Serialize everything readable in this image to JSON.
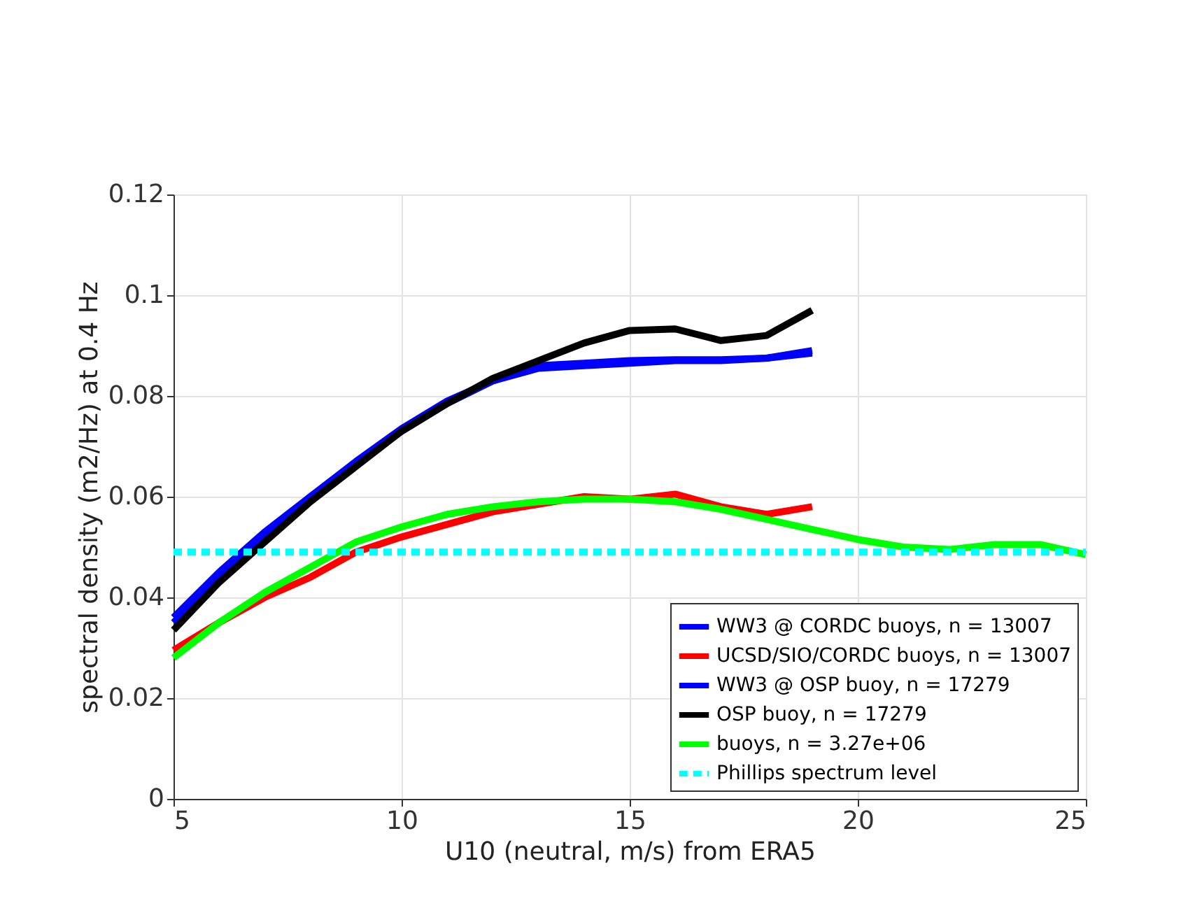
{
  "chart_data": {
    "type": "line",
    "xlabel": "U10 (neutral, m/s) from ERA5",
    "ylabel": "spectral density (m2/Hz) at 0.4 Hz",
    "xlim": [
      5,
      25
    ],
    "xticks": [
      5,
      10,
      15,
      20,
      25
    ],
    "ylim": [
      0,
      0.12
    ],
    "yticks": [
      0,
      0.02,
      0.04,
      0.06,
      0.08,
      0.1,
      0.12
    ],
    "grid": true,
    "legend": "bottom right",
    "marker": "none",
    "series": [
      {
        "name": "WW3 @ CORDC buoys, n = 13007",
        "color": "#0000ff",
        "line_style": "solid",
        "x": [
          5,
          6,
          7,
          8,
          9,
          10,
          11,
          12,
          13,
          14,
          15,
          16,
          17,
          18,
          19
        ],
        "values": [
          0.036,
          0.045,
          0.053,
          0.06,
          0.067,
          0.0735,
          0.079,
          0.083,
          0.0855,
          0.086,
          0.0865,
          0.087,
          0.087,
          0.0875,
          0.089
        ]
      },
      {
        "name": "UCSD/SIO/CORDC buoys, n = 13007",
        "color": "#ff0000",
        "line_style": "solid",
        "x": [
          5,
          6,
          7,
          8,
          9,
          10,
          11,
          12,
          13,
          14,
          15,
          16,
          17,
          18,
          19
        ],
        "values": [
          0.0295,
          0.035,
          0.04,
          0.044,
          0.049,
          0.052,
          0.0545,
          0.057,
          0.0585,
          0.06,
          0.0595,
          0.0605,
          0.058,
          0.0565,
          0.058
        ]
      },
      {
        "name": "WW3 @ OSP buoy, n = 17279",
        "color": "#0000ff",
        "line_style": "solid",
        "x": [
          5,
          6,
          7,
          8,
          9,
          10,
          11,
          12,
          13,
          14,
          15,
          16,
          17,
          18,
          19
        ],
        "values": [
          0.035,
          0.044,
          0.052,
          0.06,
          0.0665,
          0.073,
          0.0785,
          0.083,
          0.086,
          0.0865,
          0.087,
          0.0872,
          0.0872,
          0.0875,
          0.0885
        ]
      },
      {
        "name": "OSP buoy, n = 17279",
        "color": "#000000",
        "line_style": "solid",
        "x": [
          5,
          6,
          7,
          8,
          9,
          10,
          11,
          12,
          13,
          14,
          15,
          16,
          17,
          18,
          19
        ],
        "values": [
          0.0335,
          0.043,
          0.051,
          0.059,
          0.066,
          0.073,
          0.0785,
          0.0835,
          0.087,
          0.0905,
          0.093,
          0.0933,
          0.091,
          0.092,
          0.097
        ]
      },
      {
        "name": "buoys, n = 3.27e+06",
        "color": "#00ff00",
        "line_style": "solid",
        "x": [
          5,
          6,
          7,
          8,
          9,
          10,
          11,
          12,
          13,
          14,
          15,
          16,
          17,
          18,
          19,
          20,
          21,
          22,
          23,
          24,
          25
        ],
        "values": [
          0.028,
          0.035,
          0.041,
          0.046,
          0.051,
          0.054,
          0.0565,
          0.058,
          0.059,
          0.0595,
          0.0595,
          0.059,
          0.0575,
          0.0555,
          0.0535,
          0.0515,
          0.05,
          0.0495,
          0.0505,
          0.0505,
          0.0485
        ]
      },
      {
        "name": "Phillips spectrum level",
        "color": "#00ffff",
        "line_style": "dashed",
        "x": [
          5,
          25
        ],
        "values": [
          0.049,
          0.049
        ]
      }
    ]
  }
}
